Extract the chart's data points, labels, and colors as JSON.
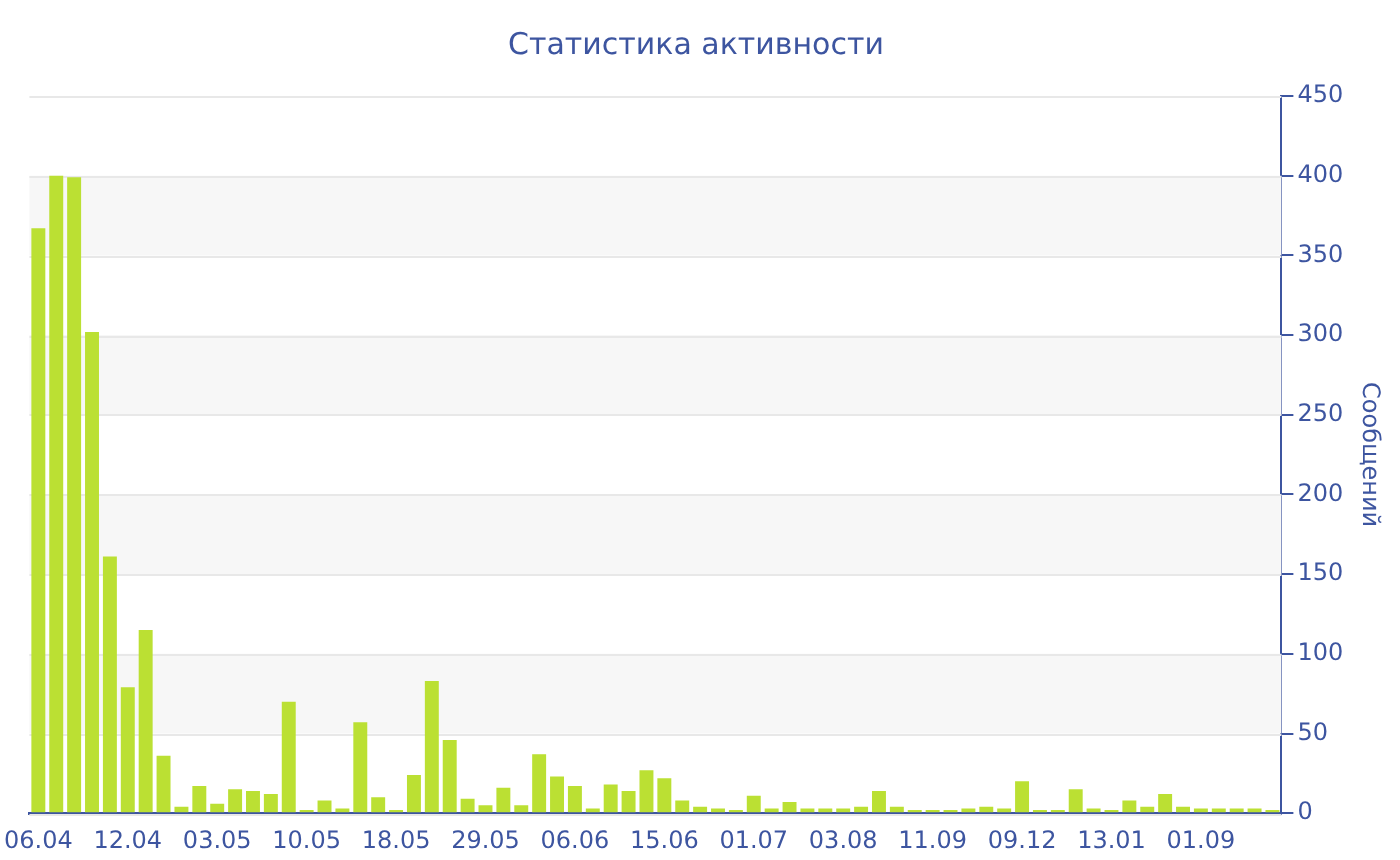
{
  "chart_data": {
    "type": "bar",
    "title": "Статистика активности",
    "ylabel": "Сообщений",
    "categories": [
      "06.04",
      null,
      null,
      null,
      null,
      "12.04",
      null,
      null,
      null,
      null,
      "03.05",
      null,
      null,
      null,
      null,
      "10.05",
      null,
      null,
      null,
      null,
      "18.05",
      null,
      null,
      null,
      null,
      "29.05",
      null,
      null,
      null,
      null,
      "06.06",
      null,
      null,
      null,
      null,
      "15.06",
      null,
      null,
      null,
      null,
      "01.07",
      null,
      null,
      null,
      null,
      "03.08",
      null,
      null,
      null,
      null,
      "11.09",
      null,
      null,
      null,
      null,
      "09.12",
      null,
      null,
      null,
      null,
      "13.01",
      null,
      null,
      null,
      null,
      "01.09",
      null,
      null,
      null,
      null
    ],
    "values": [
      367,
      400,
      399,
      302,
      161,
      79,
      115,
      36,
      4,
      17,
      6,
      15,
      14,
      12,
      70,
      2,
      8,
      3,
      57,
      10,
      2,
      24,
      83,
      46,
      9,
      5,
      16,
      5,
      37,
      23,
      17,
      3,
      18,
      14,
      27,
      22,
      8,
      4,
      3,
      2,
      11,
      3,
      7,
      3,
      3,
      3,
      4,
      14,
      4,
      2,
      2,
      2,
      3,
      4,
      3,
      20,
      2,
      2,
      15,
      3,
      2,
      8,
      4,
      12,
      4,
      3,
      3,
      3,
      3,
      2
    ],
    "color": "#bbe033",
    "ylim": [
      0,
      450
    ],
    "yticks": [
      0,
      50,
      100,
      150,
      200,
      250,
      300,
      350,
      400,
      450
    ],
    "grid": "y"
  }
}
